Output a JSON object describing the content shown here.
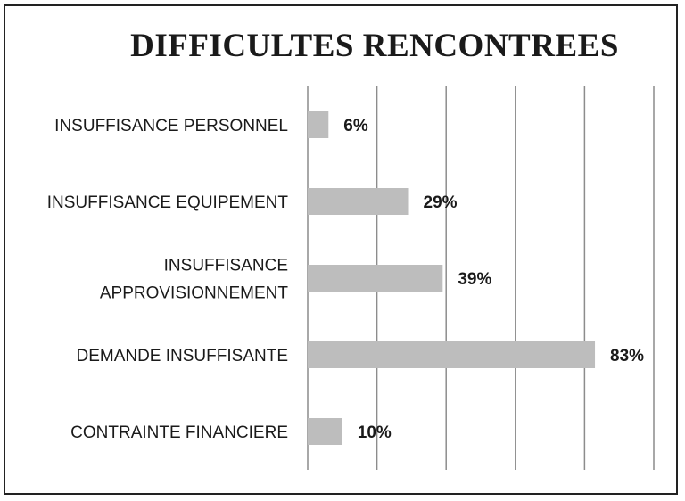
{
  "chart_data": {
    "type": "bar",
    "orientation": "horizontal",
    "title": "DIFFICULTES RENCONTREES",
    "categories": [
      [
        "INSUFFISANCE PERSONNEL"
      ],
      [
        "INSUFFISANCE EQUIPEMENT"
      ],
      [
        "INSUFFISANCE",
        "APPROVISIONNEMENT"
      ],
      [
        "DEMANDE INSUFFISANTE"
      ],
      [
        "CONTRAINTE FINANCIERE"
      ]
    ],
    "values": [
      6,
      29,
      39,
      83,
      10
    ],
    "value_labels": [
      "6%",
      "29%",
      "39%",
      "83%",
      "10%"
    ],
    "xlim": [
      0,
      100
    ],
    "grid": true,
    "legend": "none",
    "colors": {
      "bar": "#bdbdbd",
      "grid": "#8c8c8c",
      "text": "#1a1a1a"
    }
  }
}
